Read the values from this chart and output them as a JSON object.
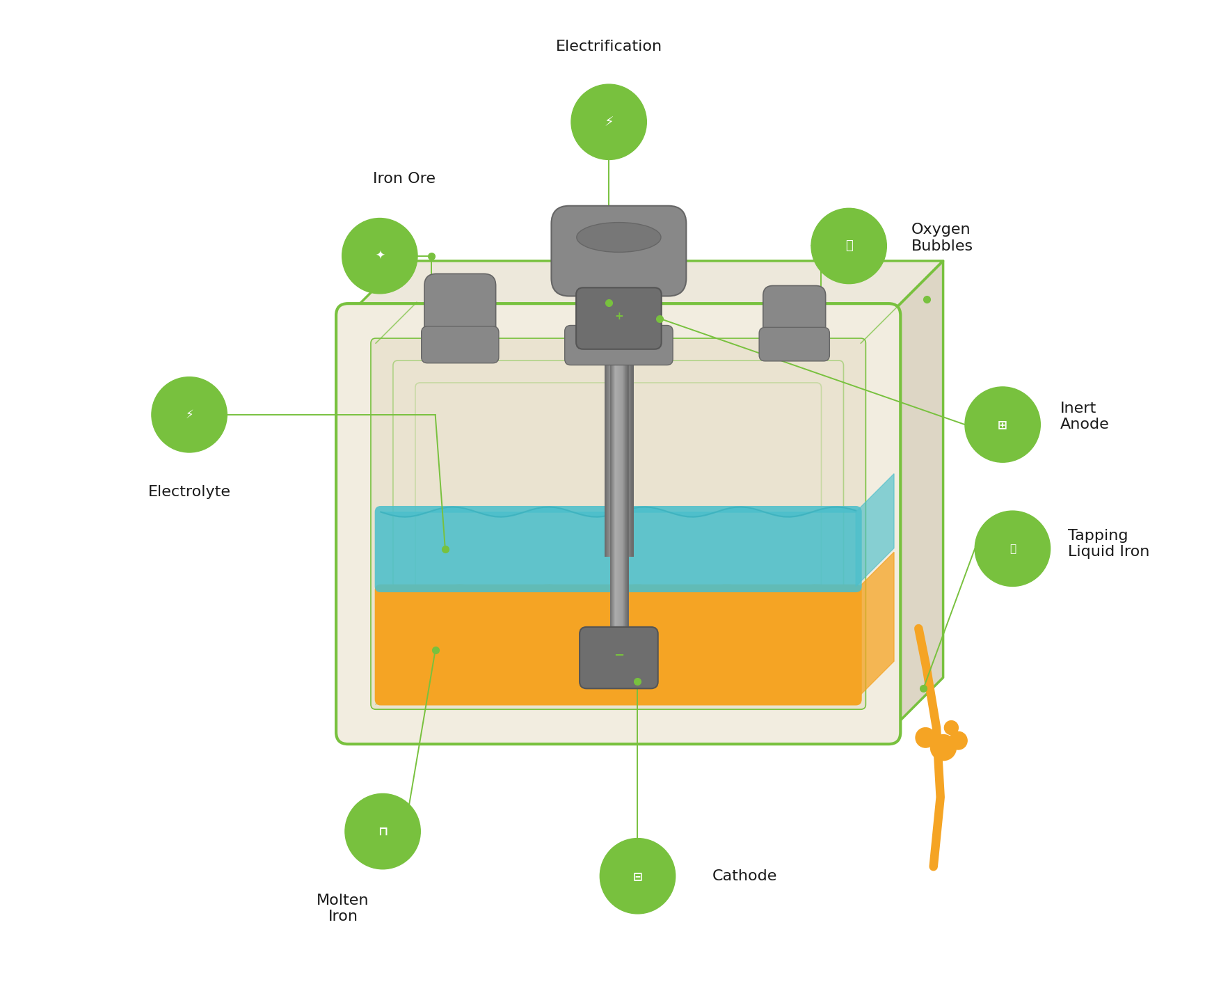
{
  "bg_color": "#ffffff",
  "gc": "#78c13e",
  "gl": "#78c13e",
  "box_outer_fill": "#f2ede0",
  "box_outer_edge": "#78c13e",
  "box_inner_fill": "#eae3d0",
  "box_top_fill": "#ede8db",
  "box_right_fill": "#ddd6c5",
  "pipe_mid": "#888888",
  "pipe_dark": "#555555",
  "pipe_light": "#aaaaaa",
  "pipe_very_dark": "#404040",
  "elec_blue": "#4dbfcb",
  "molten_orange": "#f5a424",
  "electrode_gray": "#6a6a6a",
  "hole_gray": "#888888",
  "labels": {
    "electrification": "Electrification",
    "iron_ore": "Iron Ore",
    "oxygen_bubbles": "Oxygen\nBubbles",
    "inert_anode": "Inert\nAnode",
    "electrolyte": "Electrolyte",
    "molten_iron": "Molten\nIron",
    "cathode": "Cathode",
    "tapping": "Tapping\nLiquid Iron"
  },
  "lw_label": 16,
  "cr": 0.038
}
